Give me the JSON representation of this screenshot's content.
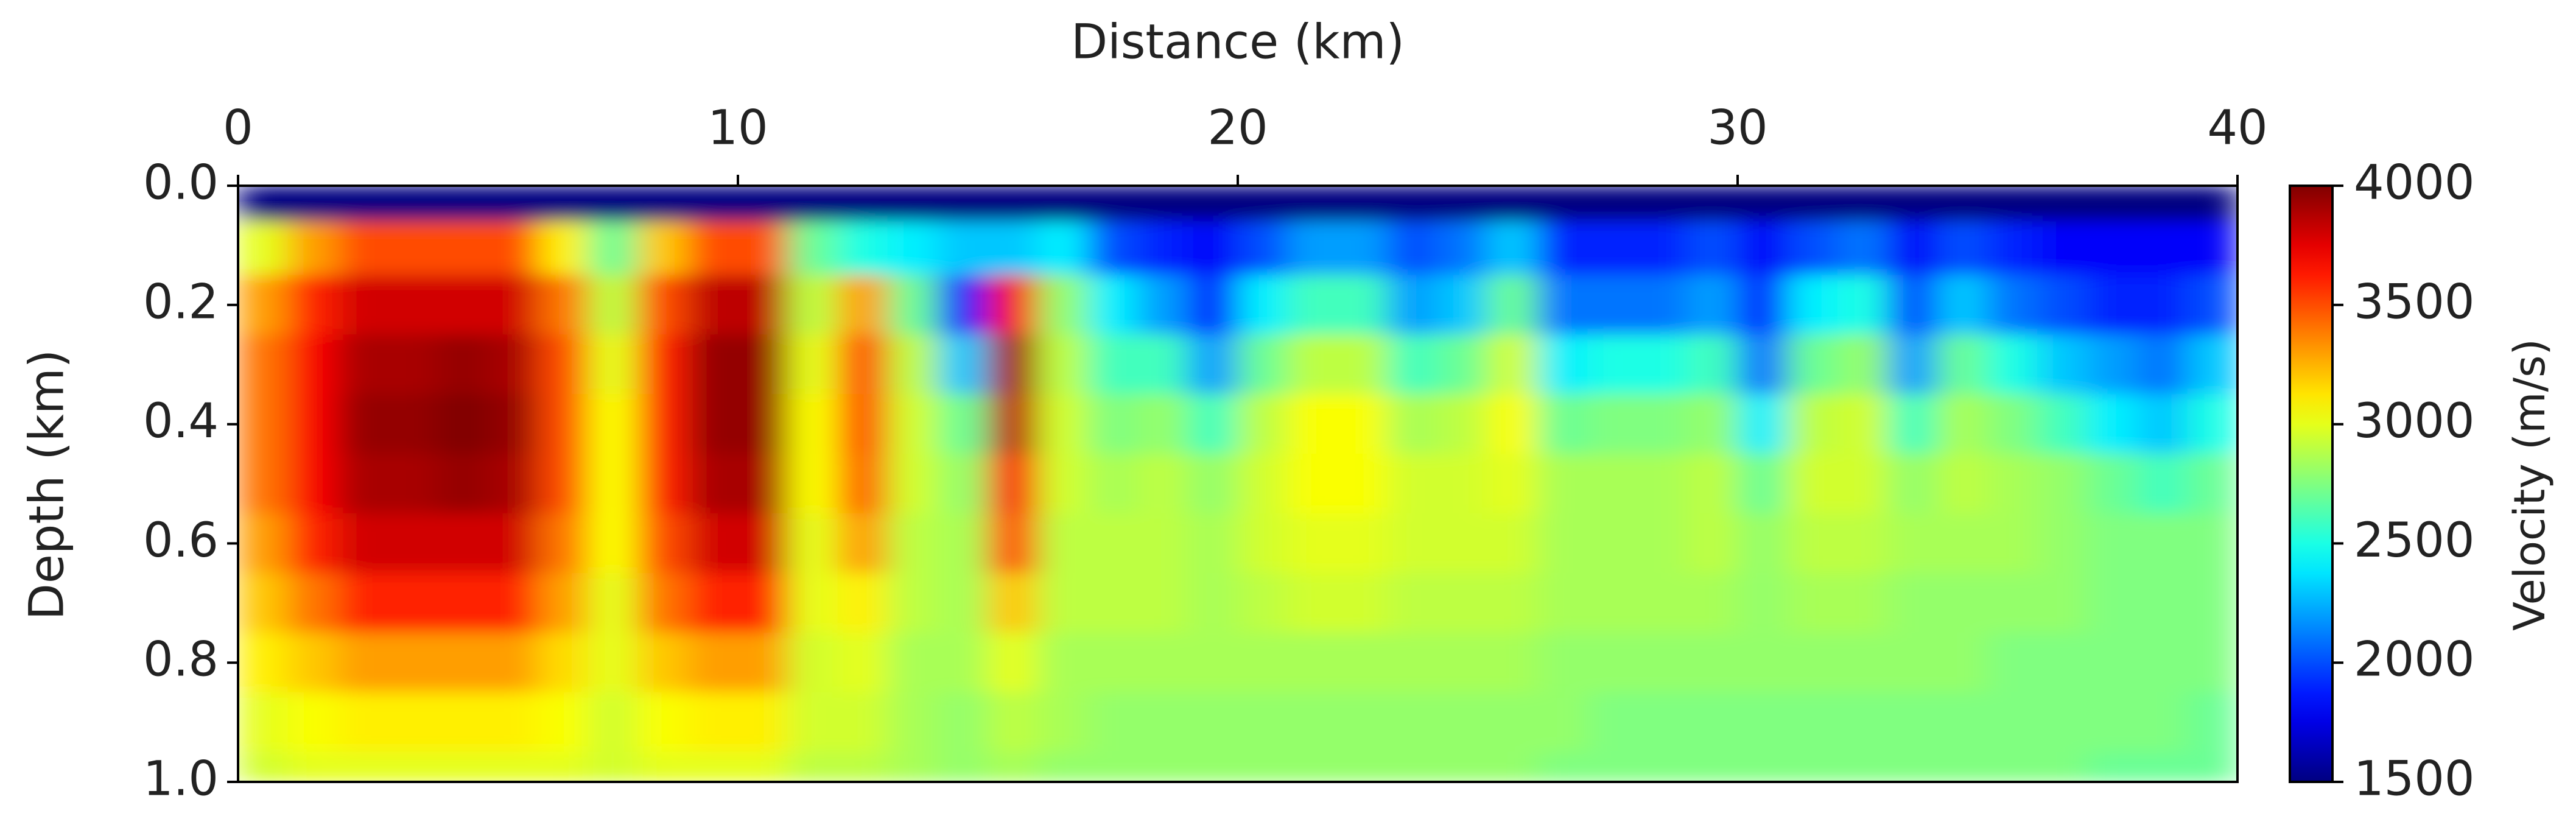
{
  "chart_data": {
    "type": "heatmap",
    "xlabel": "Distance (km)",
    "ylabel": "Depth (km)",
    "colorbar_label": "Velocity (m/s)",
    "colormap": "jet",
    "xlim": [
      0,
      40
    ],
    "xticks": [
      0,
      10,
      20,
      30,
      40
    ],
    "ylim": [
      0,
      1
    ],
    "y_inverted": true,
    "yticks": [
      {
        "value": 0,
        "label": "0.0"
      },
      0.2,
      0.4,
      0.6,
      0.8,
      {
        "value": 1,
        "label": "1.0"
      }
    ],
    "zlim": [
      1500,
      4000
    ],
    "zticks": [
      1500,
      2000,
      2500,
      3000,
      3500,
      4000
    ],
    "xbins": [
      0,
      1,
      2,
      3,
      4,
      5,
      6,
      7,
      8,
      9,
      10,
      11,
      12,
      13,
      14,
      15,
      16,
      17,
      18,
      19,
      20,
      21,
      22,
      23,
      24,
      25,
      26,
      27,
      28,
      29,
      30,
      31,
      32,
      33,
      34,
      35,
      36,
      37,
      38,
      39,
      40
    ],
    "ybins": [
      0,
      0.06,
      0.15,
      0.25,
      0.35,
      0.45,
      0.55,
      0.65,
      0.75,
      0.85,
      0.95,
      1.0
    ],
    "values": [
      [
        1500,
        3000,
        3300,
        3400,
        3400,
        3400,
        3300,
        3200,
        3100,
        3000,
        2950
      ],
      [
        1500,
        3300,
        3600,
        3700,
        3700,
        3700,
        3600,
        3400,
        3200,
        3050,
        3000
      ],
      [
        1500,
        3500,
        3800,
        3900,
        3950,
        3900,
        3800,
        3600,
        3300,
        3100,
        3000
      ],
      [
        1500,
        3500,
        3800,
        3900,
        3950,
        3900,
        3800,
        3600,
        3300,
        3100,
        3000
      ],
      [
        1500,
        3500,
        3800,
        3950,
        4000,
        3950,
        3800,
        3600,
        3300,
        3100,
        3000
      ],
      [
        1500,
        3500,
        3800,
        3900,
        3950,
        3900,
        3800,
        3600,
        3300,
        3100,
        3000
      ],
      [
        1500,
        3100,
        3400,
        3500,
        3500,
        3500,
        3400,
        3300,
        3150,
        3050,
        3000
      ],
      [
        1500,
        2700,
        2900,
        3000,
        3050,
        3050,
        3050,
        3000,
        3000,
        2950,
        2950
      ],
      [
        1500,
        3200,
        3500,
        3600,
        3600,
        3600,
        3500,
        3400,
        3200,
        3050,
        3000
      ],
      [
        1500,
        3500,
        3850,
        3950,
        3950,
        3900,
        3800,
        3600,
        3300,
        3100,
        3000
      ],
      [
        1500,
        3500,
        3850,
        3950,
        3950,
        3900,
        3800,
        3600,
        3300,
        3100,
        3000
      ],
      [
        1500,
        2700,
        2900,
        3000,
        3050,
        3050,
        3000,
        3000,
        2950,
        2950,
        2900
      ],
      [
        1500,
        2500,
        3300,
        3500,
        3500,
        3450,
        3300,
        3100,
        3000,
        2950,
        2900
      ],
      [
        1500,
        2400,
        2700,
        2900,
        2950,
        2950,
        2900,
        2900,
        2850,
        2850,
        2850
      ],
      [
        1500,
        2300,
        1900,
        2300,
        2700,
        2800,
        2850,
        2850,
        2850,
        2800,
        2800
      ],
      [
        1500,
        2300,
        3700,
        3900,
        3850,
        3700,
        3500,
        3200,
        3000,
        2900,
        2850
      ],
      [
        1500,
        2400,
        2800,
        2900,
        2950,
        2950,
        2900,
        2900,
        2850,
        2850,
        2800
      ],
      [
        1500,
        2000,
        2400,
        2600,
        2750,
        2850,
        2900,
        2900,
        2850,
        2800,
        2800
      ],
      [
        1500,
        1900,
        2200,
        2600,
        2800,
        2900,
        2900,
        2900,
        2850,
        2800,
        2800
      ],
      [
        1500,
        1800,
        1900,
        2200,
        2600,
        2800,
        2850,
        2850,
        2850,
        2800,
        2800
      ],
      [
        1500,
        2000,
        2400,
        2700,
        2900,
        2950,
        2950,
        2900,
        2850,
        2800,
        2800
      ],
      [
        1500,
        2200,
        2600,
        2900,
        3050,
        3050,
        3000,
        2950,
        2850,
        2800,
        2800
      ],
      [
        1500,
        2200,
        2600,
        2900,
        3050,
        3050,
        3000,
        2950,
        2850,
        2800,
        2800
      ],
      [
        1500,
        2000,
        2200,
        2600,
        2850,
        2950,
        2950,
        2900,
        2850,
        2800,
        2800
      ],
      [
        1500,
        2100,
        2300,
        2700,
        2900,
        2950,
        2950,
        2900,
        2850,
        2800,
        2800
      ],
      [
        1500,
        2300,
        2700,
        2950,
        3050,
        3000,
        2950,
        2900,
        2850,
        2800,
        2800
      ],
      [
        1500,
        1900,
        2100,
        2400,
        2700,
        2850,
        2850,
        2850,
        2800,
        2800,
        2750
      ],
      [
        1500,
        1900,
        2100,
        2500,
        2750,
        2850,
        2850,
        2850,
        2800,
        2750,
        2750
      ],
      [
        1500,
        1900,
        2100,
        2500,
        2750,
        2850,
        2850,
        2850,
        2800,
        2750,
        2750
      ],
      [
        1500,
        2000,
        2200,
        2600,
        2800,
        2900,
        2900,
        2850,
        2800,
        2750,
        2750
      ],
      [
        1500,
        1800,
        1900,
        2100,
        2400,
        2700,
        2800,
        2800,
        2800,
        2750,
        2750
      ],
      [
        1500,
        2000,
        2400,
        2700,
        2900,
        2950,
        2900,
        2850,
        2800,
        2750,
        2750
      ],
      [
        1500,
        2100,
        2500,
        2800,
        2950,
        2950,
        2900,
        2850,
        2800,
        2750,
        2750
      ],
      [
        1500,
        1800,
        2000,
        2200,
        2600,
        2800,
        2850,
        2800,
        2800,
        2750,
        2750
      ],
      [
        1500,
        2000,
        2300,
        2700,
        2850,
        2900,
        2850,
        2800,
        2800,
        2750,
        2750
      ],
      [
        1500,
        1900,
        2100,
        2500,
        2750,
        2850,
        2850,
        2800,
        2750,
        2750,
        2750
      ],
      [
        1500,
        1800,
        2000,
        2300,
        2600,
        2800,
        2800,
        2800,
        2750,
        2750,
        2750
      ],
      [
        1500,
        1800,
        1900,
        2200,
        2400,
        2700,
        2750,
        2750,
        2750,
        2750,
        2700
      ],
      [
        1500,
        1800,
        1900,
        2100,
        2300,
        2600,
        2750,
        2750,
        2750,
        2750,
        2700
      ],
      [
        1500,
        1800,
        2000,
        2300,
        2500,
        2700,
        2750,
        2750,
        2750,
        2700,
        2700
      ]
    ]
  }
}
